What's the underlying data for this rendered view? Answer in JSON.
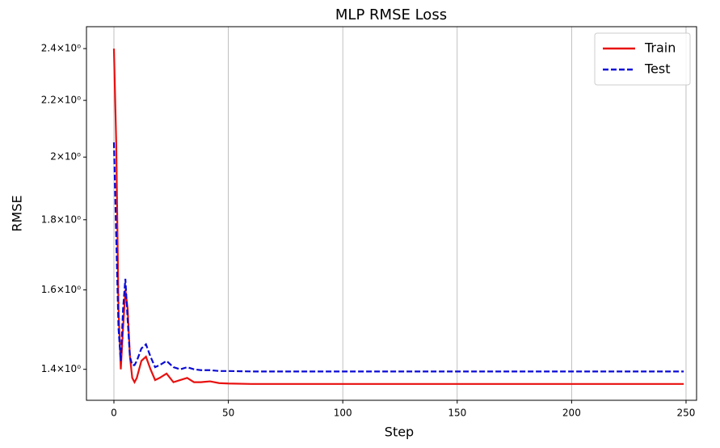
{
  "chart_data": {
    "type": "line",
    "title": "MLP RMSE Loss",
    "x_label": "Step",
    "y_label": "RMSE",
    "x": [
      0,
      1,
      2,
      3,
      4,
      5,
      6,
      7,
      8,
      9,
      10,
      12,
      14,
      16,
      18,
      20,
      23,
      26,
      29,
      32,
      35,
      38,
      42,
      46,
      50,
      60,
      80,
      100,
      150,
      200,
      249
    ],
    "series": [
      {
        "name": "Train",
        "color": "#e8100f",
        "linestyle": "solid",
        "values": [
          2.4,
          2.05,
          1.55,
          1.4,
          1.5,
          1.6,
          1.55,
          1.43,
          1.38,
          1.37,
          1.38,
          1.42,
          1.43,
          1.4,
          1.375,
          1.38,
          1.39,
          1.37,
          1.375,
          1.38,
          1.37,
          1.37,
          1.372,
          1.368,
          1.367,
          1.366,
          1.366,
          1.366,
          1.366,
          1.366,
          1.366
        ]
      },
      {
        "name": "Test",
        "color": "#0a0ad6",
        "linestyle": "dashed",
        "values": [
          2.05,
          1.75,
          1.5,
          1.42,
          1.55,
          1.63,
          1.52,
          1.43,
          1.41,
          1.41,
          1.42,
          1.45,
          1.46,
          1.43,
          1.405,
          1.41,
          1.42,
          1.405,
          1.4,
          1.405,
          1.4,
          1.398,
          1.398,
          1.396,
          1.396,
          1.395,
          1.395,
          1.395,
          1.395,
          1.395,
          1.395
        ]
      }
    ],
    "xlim": [
      -12,
      254.6
    ],
    "xticks": [
      0,
      50,
      100,
      150,
      200,
      250
    ],
    "ylim": [
      1.329,
      2.49
    ],
    "yscale": "log",
    "yticks": [
      {
        "value": 1.4,
        "label": "1.4×10⁰"
      },
      {
        "value": 1.6,
        "label": "1.6×10⁰"
      },
      {
        "value": 1.8,
        "label": "1.8×10⁰"
      },
      {
        "value": 2,
        "label": "2×10⁰"
      },
      {
        "value": 2.2,
        "label": "2.2×10⁰"
      },
      {
        "value": 2.4,
        "label": "2.4×10⁰"
      }
    ],
    "grid": "x",
    "legend": "upper right"
  }
}
